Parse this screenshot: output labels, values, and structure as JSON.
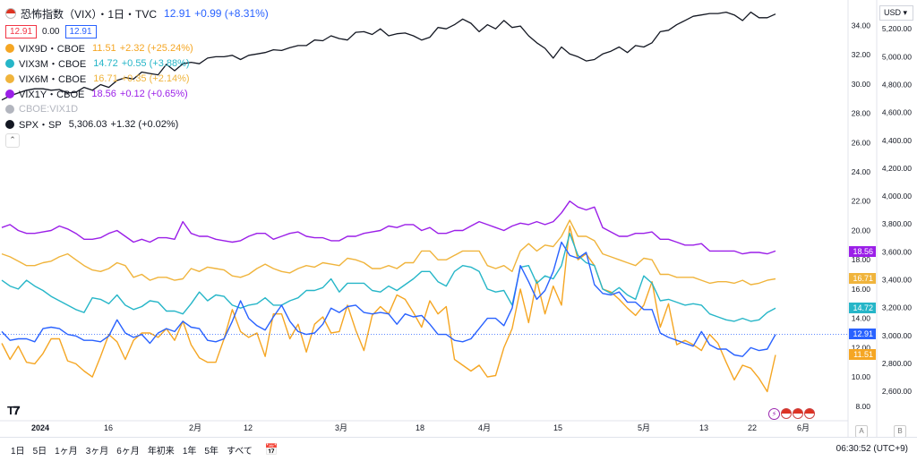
{
  "header": {
    "title": "恐怖指数（VIX）・1日・TVC",
    "price": "12.91",
    "change": "+0.99 (+8.31%)",
    "bid": "12.91",
    "spread": "0.00",
    "ask": "12.91"
  },
  "legend": [
    {
      "name": "VIX9D・CBOE",
      "value": "11.51",
      "change": "+2.32 (+25.24%)",
      "color": "#f5a623"
    },
    {
      "name": "VIX3M・CBOE",
      "value": "14.72",
      "change": "+0.55 (+3.88%)",
      "color": "#26b6c8"
    },
    {
      "name": "VIX6M・CBOE",
      "value": "16.71",
      "change": "+0.35 (+2.14%)",
      "color": "#f0b43c"
    },
    {
      "name": "VIX1Y・CBOE",
      "value": "18.56",
      "change": "+0.12 (+0.65%)",
      "color": "#9b1fe8"
    },
    {
      "name": "CBOE:VIX1D",
      "value": "",
      "change": "",
      "color": "#b2b5be"
    },
    {
      "name": "SPX・SP",
      "value": "5,306.03",
      "change": "+1.32 (+0.02%)",
      "color": "#131722"
    }
  ],
  "currency": "USD",
  "timeframes": [
    "1日",
    "5日",
    "1ヶ月",
    "3ヶ月",
    "6ヶ月",
    "年初来",
    "1年",
    "5年",
    "すべて"
  ],
  "clock": "06:30:52 (UTC+9)",
  "scale_labels": {
    "left": "A",
    "right": "B"
  },
  "chart_data": {
    "type": "line",
    "x_tick_labels": [
      "2024",
      "16",
      "2月",
      "12",
      "3月",
      "18",
      "4月",
      "15",
      "5月",
      "13",
      "22",
      "6月"
    ],
    "left_axis": {
      "ticks": [
        "34.00",
        "32.00",
        "30.00",
        "28.00",
        "26.00",
        "24.00",
        "22.00",
        "20.00",
        "18.00",
        "16.00",
        "14.00",
        "12.00",
        "10.00",
        "8.00"
      ],
      "ylim": [
        7.5,
        35
      ]
    },
    "right_axis": {
      "ticks": [
        "5,200.00",
        "5,000.00",
        "4,800.00",
        "4,600.00",
        "4,400.00",
        "4,200.00",
        "4,000.00",
        "3,800.00",
        "3,600.00",
        "3,400.00",
        "3,200.00",
        "3,000.00",
        "2,800.00",
        "2,600.00"
      ],
      "ylim": [
        2440,
        5330
      ]
    },
    "last_value_badges": [
      {
        "series": "VIX1Y",
        "label": "18.56",
        "color": "#9b1fe8"
      },
      {
        "series": "VIX6M",
        "label": "16.71",
        "color": "#f0b43c"
      },
      {
        "series": "VIX3M",
        "label": "14.72",
        "color": "#26b6c8"
      },
      {
        "series": "VIX",
        "label": "12.91",
        "color": "#2962ff"
      },
      {
        "series": "VIX9D",
        "label": "11.51",
        "color": "#f5a623"
      }
    ],
    "series": [
      {
        "name": "VIX9D",
        "axis": "left",
        "color": "#f5a623",
        "values": [
          12.3,
          11.2,
          12.1,
          11.0,
          10.9,
          11.6,
          12.6,
          12.6,
          11.1,
          10.9,
          10.4,
          10.0,
          11.4,
          12.9,
          12.4,
          11.2,
          12.5,
          13.0,
          13.0,
          12.7,
          13.3,
          12.5,
          13.8,
          12.2,
          11.3,
          11.0,
          11.0,
          12.6,
          14.6,
          13.1,
          12.7,
          13.0,
          11.4,
          14.3,
          14.3,
          12.6,
          13.6,
          11.7,
          13.6,
          14.1,
          13.0,
          13.1,
          14.9,
          13.2,
          11.8,
          14.2,
          14.8,
          14.3,
          15.6,
          15.3,
          14.4,
          13.4,
          15.2,
          14.3,
          14.8,
          11.2,
          10.8,
          10.4,
          10.8,
          10.0,
          10.1,
          12.0,
          13.3,
          16.0,
          13.7,
          16.6,
          14.3,
          16.2,
          14.9,
          20.3,
          18.0,
          18.4,
          17.6,
          16.0,
          15.8,
          15.3,
          14.7,
          14.2,
          14.9,
          16.5,
          13.4,
          15.0,
          12.2,
          12.5,
          12.2,
          11.8,
          12.9,
          12.3,
          11.0,
          9.8,
          10.8,
          10.6,
          9.9,
          9.0,
          11.5
        ]
      },
      {
        "name": "VIX3M",
        "axis": "left",
        "color": "#26b6c8",
        "values": [
          16.6,
          16.2,
          16.0,
          16.6,
          16.2,
          15.9,
          15.5,
          15.2,
          14.9,
          14.6,
          14.4,
          15.4,
          15.3,
          15.0,
          15.6,
          14.9,
          14.6,
          14.8,
          15.2,
          15.1,
          14.5,
          14.5,
          14.3,
          15.0,
          15.8,
          15.2,
          15.6,
          15.5,
          14.9,
          14.7,
          14.9,
          15.0,
          15.4,
          14.9,
          14.9,
          15.2,
          15.4,
          15.9,
          15.9,
          16.1,
          16.7,
          15.8,
          16.4,
          16.4,
          16.4,
          15.9,
          15.8,
          16.2,
          15.9,
          16.3,
          16.7,
          17.2,
          17.2,
          16.5,
          16.2,
          17.2,
          17.6,
          17.5,
          17.2,
          16.0,
          15.8,
          15.9,
          14.9,
          17.5,
          17.6,
          16.4,
          16.9,
          16.7,
          17.6,
          19.8,
          18.3,
          17.8,
          17.6,
          16.0,
          15.7,
          16.1,
          15.6,
          15.3,
          16.9,
          16.4,
          15.2,
          15.3,
          15.1,
          14.9,
          15.0,
          14.9,
          14.3,
          14.1,
          13.9,
          13.8,
          14.0,
          13.8,
          13.9,
          14.4,
          14.7
        ]
      },
      {
        "name": "VIX6M",
        "axis": "left",
        "color": "#f0b43c",
        "values": [
          18.4,
          18.2,
          17.9,
          17.6,
          17.6,
          17.8,
          17.9,
          18.2,
          18.4,
          18.0,
          17.6,
          17.3,
          17.2,
          17.4,
          17.8,
          17.6,
          16.8,
          17.0,
          16.6,
          16.8,
          16.8,
          16.6,
          16.7,
          17.4,
          17.2,
          17.5,
          17.4,
          17.3,
          16.9,
          16.8,
          17.0,
          17.4,
          17.7,
          17.4,
          17.2,
          17.1,
          17.4,
          17.6,
          17.5,
          17.8,
          17.7,
          17.6,
          18.1,
          18.0,
          17.8,
          17.4,
          17.4,
          17.6,
          17.4,
          17.8,
          17.8,
          18.6,
          18.6,
          18.0,
          18.0,
          18.3,
          18.6,
          18.6,
          18.6,
          17.6,
          17.4,
          17.6,
          17.2,
          18.6,
          19.1,
          18.6,
          19.0,
          18.9,
          19.6,
          20.7,
          19.6,
          19.6,
          19.3,
          18.4,
          18.2,
          18.0,
          17.8,
          17.6,
          18.1,
          18.0,
          17.0,
          17.0,
          16.8,
          16.8,
          16.8,
          16.6,
          16.4,
          16.5,
          16.5,
          16.4,
          16.6,
          16.3,
          16.4,
          16.6,
          16.7
        ]
      },
      {
        "name": "VIX1Y",
        "axis": "left",
        "color": "#9b1fe8",
        "values": [
          20.2,
          20.4,
          20.0,
          19.8,
          19.8,
          19.9,
          20.0,
          20.3,
          20.1,
          19.8,
          19.4,
          19.4,
          19.5,
          19.8,
          20.0,
          19.6,
          19.2,
          19.4,
          19.2,
          19.5,
          19.5,
          19.4,
          20.6,
          19.8,
          19.6,
          19.6,
          19.4,
          19.3,
          19.2,
          19.3,
          19.6,
          19.8,
          19.8,
          19.4,
          19.6,
          19.8,
          19.9,
          19.6,
          19.5,
          19.5,
          19.3,
          19.3,
          19.6,
          19.6,
          19.8,
          19.9,
          20.0,
          20.3,
          20.2,
          20.4,
          20.4,
          20.0,
          20.2,
          19.8,
          19.8,
          20.0,
          20.0,
          20.3,
          20.6,
          20.4,
          20.2,
          20.0,
          20.3,
          20.5,
          20.4,
          20.6,
          20.4,
          20.6,
          21.2,
          22.0,
          21.6,
          21.4,
          21.6,
          20.2,
          19.9,
          19.6,
          19.6,
          19.8,
          19.8,
          19.9,
          19.4,
          19.4,
          19.2,
          19.0,
          19.0,
          19.1,
          18.6,
          18.6,
          18.6,
          18.6,
          18.4,
          18.5,
          18.5,
          18.4,
          18.6
        ]
      },
      {
        "name": "VIX",
        "axis": "left",
        "color": "#2962ff",
        "values": [
          13.1,
          12.5,
          12.6,
          12.6,
          12.4,
          13.3,
          13.4,
          13.3,
          12.9,
          12.8,
          12.5,
          12.5,
          12.4,
          12.8,
          13.9,
          13.0,
          12.7,
          12.9,
          12.3,
          13.0,
          13.3,
          13.1,
          13.8,
          13.4,
          13.3,
          12.5,
          12.4,
          12.6,
          13.8,
          15.2,
          14.0,
          13.5,
          13.2,
          14.1,
          14.9,
          13.8,
          13.1,
          12.9,
          13.0,
          13.6,
          14.7,
          14.4,
          14.8,
          14.9,
          14.4,
          14.3,
          14.4,
          14.3,
          13.6,
          14.3,
          14.1,
          14.2,
          13.6,
          12.9,
          12.9,
          12.5,
          12.4,
          12.6,
          13.3,
          14.0,
          14.0,
          13.5,
          14.7,
          17.6,
          16.5,
          15.3,
          15.9,
          17.2,
          19.2,
          18.3,
          18.1,
          18.5,
          16.3,
          15.7,
          15.6,
          15.8,
          15.1,
          15.1,
          14.6,
          14.6,
          13.0,
          12.7,
          12.5,
          12.3,
          12.1,
          13.1,
          12.2,
          11.9,
          11.9,
          11.5,
          11.4,
          12.0,
          11.8,
          11.9,
          12.9
        ]
      },
      {
        "name": "SPX",
        "axis": "right",
        "color": "#131722",
        "values": [
          4690,
          4720,
          4740,
          4760,
          4770,
          4770,
          4760,
          4765,
          4740,
          4745,
          4780,
          4760,
          4800,
          4780,
          4830,
          4850,
          4840,
          4890,
          4880,
          4870,
          4945,
          4900,
          4950,
          4960,
          4950,
          4990,
          5000,
          5000,
          5010,
          4980,
          5010,
          5020,
          5030,
          5050,
          5045,
          5065,
          5080,
          5080,
          5120,
          5115,
          5150,
          5130,
          5120,
          5175,
          5180,
          5160,
          5200,
          5150,
          5165,
          5170,
          5150,
          5120,
          5140,
          5210,
          5200,
          5230,
          5270,
          5240,
          5180,
          5230,
          5200,
          5260,
          5210,
          5220,
          5150,
          5100,
          5060,
          4990,
          5070,
          5020,
          5000,
          4970,
          4980,
          5020,
          5040,
          5070,
          5030,
          5080,
          5070,
          5100,
          5180,
          5190,
          5230,
          5260,
          5290,
          5300,
          5310,
          5310,
          5320,
          5300,
          5260,
          5320,
          5280,
          5280,
          5306
        ]
      }
    ]
  }
}
